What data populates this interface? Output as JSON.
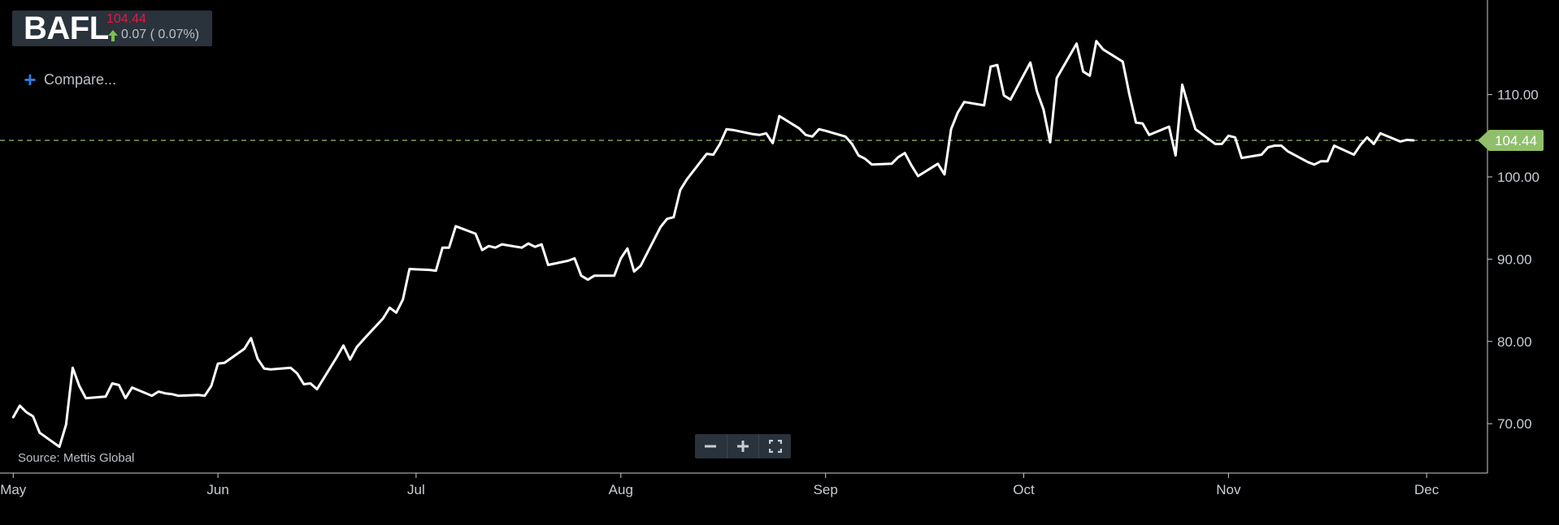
{
  "header": {
    "ticker": "BAFL",
    "price": "104.44",
    "change": "0.07 ( 0.07%)",
    "direction_icon": "arrow-up-icon",
    "price_color": "#e5173f",
    "up_color": "#7cc04b"
  },
  "compare": {
    "label": "Compare...",
    "icon": "plus-icon"
  },
  "source": "Source: Mettis Global",
  "zoom_controls": {
    "zoom_out_icon": "minus-icon",
    "zoom_in_icon": "plus-icon",
    "fullscreen_icon": "fullscreen-icon"
  },
  "chart_data": {
    "type": "line",
    "x_ticks": [
      "May",
      "Jun",
      "Jul",
      "Aug",
      "Sep",
      "Oct",
      "Nov",
      "Dec"
    ],
    "y_ticks": [
      "70.00",
      "80.00",
      "90.00",
      "100.00",
      "110.00"
    ],
    "ylim": [
      64,
      121.5
    ],
    "current_price": 104.44,
    "current_label": "104.44",
    "line_color": "#ffffff",
    "reference_color": "#8fbf6a",
    "series": [
      {
        "points": [
          [
            "2023-05-01",
            70.8
          ],
          [
            "2023-05-02",
            72.2
          ],
          [
            "2023-05-03",
            71.4
          ],
          [
            "2023-05-04",
            70.9
          ],
          [
            "2023-05-05",
            68.9
          ],
          [
            "2023-05-08",
            67.2
          ],
          [
            "2023-05-09",
            69.9
          ],
          [
            "2023-05-10",
            76.8
          ],
          [
            "2023-05-11",
            74.6
          ],
          [
            "2023-05-12",
            73.1
          ],
          [
            "2023-05-15",
            73.3
          ],
          [
            "2023-05-16",
            74.9
          ],
          [
            "2023-05-17",
            74.7
          ],
          [
            "2023-05-18",
            73.1
          ],
          [
            "2023-05-19",
            74.4
          ],
          [
            "2023-05-22",
            73.4
          ],
          [
            "2023-05-23",
            73.9
          ],
          [
            "2023-05-24",
            73.7
          ],
          [
            "2023-05-25",
            73.6
          ],
          [
            "2023-05-26",
            73.4
          ],
          [
            "2023-05-29",
            73.5
          ],
          [
            "2023-05-30",
            73.4
          ],
          [
            "2023-05-31",
            74.6
          ],
          [
            "2023-06-01",
            77.3
          ],
          [
            "2023-06-02",
            77.4
          ],
          [
            "2023-06-05",
            79.1
          ],
          [
            "2023-06-06",
            80.4
          ],
          [
            "2023-06-07",
            77.9
          ],
          [
            "2023-06-08",
            76.7
          ],
          [
            "2023-06-09",
            76.6
          ],
          [
            "2023-06-12",
            76.8
          ],
          [
            "2023-06-13",
            76.1
          ],
          [
            "2023-06-14",
            74.8
          ],
          [
            "2023-06-15",
            74.9
          ],
          [
            "2023-06-16",
            74.2
          ],
          [
            "2023-06-19",
            78.1
          ],
          [
            "2023-06-20",
            79.5
          ],
          [
            "2023-06-21",
            77.8
          ],
          [
            "2023-06-22",
            79.3
          ],
          [
            "2023-06-23",
            80.2
          ],
          [
            "2023-06-26",
            82.8
          ],
          [
            "2023-06-27",
            84.1
          ],
          [
            "2023-06-28",
            83.5
          ],
          [
            "2023-06-29",
            85.1
          ],
          [
            "2023-06-30",
            88.8
          ],
          [
            "2023-07-03",
            88.7
          ],
          [
            "2023-07-04",
            88.6
          ],
          [
            "2023-07-05",
            91.4
          ],
          [
            "2023-07-06",
            91.4
          ],
          [
            "2023-07-07",
            94.0
          ],
          [
            "2023-07-10",
            93.1
          ],
          [
            "2023-07-11",
            91.1
          ],
          [
            "2023-07-12",
            91.6
          ],
          [
            "2023-07-13",
            91.4
          ],
          [
            "2023-07-14",
            91.8
          ],
          [
            "2023-07-17",
            91.4
          ],
          [
            "2023-07-18",
            91.9
          ],
          [
            "2023-07-19",
            91.5
          ],
          [
            "2023-07-20",
            91.8
          ],
          [
            "2023-07-21",
            89.3
          ],
          [
            "2023-07-24",
            89.8
          ],
          [
            "2023-07-25",
            90.1
          ],
          [
            "2023-07-26",
            88.0
          ],
          [
            "2023-07-27",
            87.5
          ],
          [
            "2023-07-28",
            88.0
          ],
          [
            "2023-07-31",
            88.0
          ],
          [
            "2023-08-01",
            90.1
          ],
          [
            "2023-08-02",
            91.3
          ],
          [
            "2023-08-03",
            88.5
          ],
          [
            "2023-08-04",
            89.2
          ],
          [
            "2023-08-07",
            93.9
          ],
          [
            "2023-08-08",
            94.9
          ],
          [
            "2023-08-09",
            95.1
          ],
          [
            "2023-08-10",
            98.4
          ],
          [
            "2023-08-11",
            99.7
          ],
          [
            "2023-08-14",
            102.8
          ],
          [
            "2023-08-15",
            102.7
          ],
          [
            "2023-08-16",
            104.0
          ],
          [
            "2023-08-17",
            105.8
          ],
          [
            "2023-08-18",
            105.7
          ],
          [
            "2023-08-21",
            105.2
          ],
          [
            "2023-08-22",
            105.1
          ],
          [
            "2023-08-23",
            105.3
          ],
          [
            "2023-08-24",
            104.1
          ],
          [
            "2023-08-25",
            107.4
          ],
          [
            "2023-08-28",
            105.9
          ],
          [
            "2023-08-29",
            105.1
          ],
          [
            "2023-08-30",
            104.9
          ],
          [
            "2023-08-31",
            105.8
          ],
          [
            "2023-09-01",
            105.6
          ],
          [
            "2023-09-04",
            104.9
          ],
          [
            "2023-09-05",
            104.0
          ],
          [
            "2023-09-06",
            102.6
          ],
          [
            "2023-09-07",
            102.2
          ],
          [
            "2023-09-08",
            101.5
          ],
          [
            "2023-09-11",
            101.6
          ],
          [
            "2023-09-12",
            102.4
          ],
          [
            "2023-09-13",
            102.9
          ],
          [
            "2023-09-14",
            101.4
          ],
          [
            "2023-09-15",
            100.1
          ],
          [
            "2023-09-18",
            101.6
          ],
          [
            "2023-09-19",
            100.3
          ],
          [
            "2023-09-20",
            105.8
          ],
          [
            "2023-09-21",
            107.8
          ],
          [
            "2023-09-22",
            109.1
          ],
          [
            "2023-09-25",
            108.7
          ],
          [
            "2023-09-26",
            113.4
          ],
          [
            "2023-09-27",
            113.6
          ],
          [
            "2023-09-28",
            109.9
          ],
          [
            "2023-09-29",
            109.4
          ],
          [
            "2023-10-02",
            113.9
          ],
          [
            "2023-10-03",
            110.4
          ],
          [
            "2023-10-04",
            108.2
          ],
          [
            "2023-10-05",
            104.2
          ],
          [
            "2023-10-06",
            112.0
          ],
          [
            "2023-10-09",
            116.2
          ],
          [
            "2023-10-10",
            112.8
          ],
          [
            "2023-10-11",
            112.3
          ],
          [
            "2023-10-12",
            116.5
          ],
          [
            "2023-10-13",
            115.5
          ],
          [
            "2023-10-16",
            114.0
          ],
          [
            "2023-10-17",
            110.0
          ],
          [
            "2023-10-18",
            106.6
          ],
          [
            "2023-10-19",
            106.5
          ],
          [
            "2023-10-20",
            105.1
          ],
          [
            "2023-10-23",
            106.1
          ],
          [
            "2023-10-24",
            102.6
          ],
          [
            "2023-10-25",
            111.2
          ],
          [
            "2023-10-26",
            108.4
          ],
          [
            "2023-10-27",
            105.8
          ],
          [
            "2023-10-30",
            104.0
          ],
          [
            "2023-10-31",
            104.0
          ],
          [
            "2023-11-01",
            105.0
          ],
          [
            "2023-11-02",
            104.8
          ],
          [
            "2023-11-03",
            102.3
          ],
          [
            "2023-11-06",
            102.7
          ],
          [
            "2023-11-07",
            103.6
          ],
          [
            "2023-11-08",
            103.8
          ],
          [
            "2023-11-09",
            103.8
          ],
          [
            "2023-11-10",
            103.1
          ],
          [
            "2023-11-13",
            101.8
          ],
          [
            "2023-11-14",
            101.5
          ],
          [
            "2023-11-15",
            101.9
          ],
          [
            "2023-11-16",
            101.9
          ],
          [
            "2023-11-17",
            103.8
          ],
          [
            "2023-11-20",
            102.7
          ],
          [
            "2023-11-21",
            103.9
          ],
          [
            "2023-11-22",
            104.8
          ],
          [
            "2023-11-23",
            104.0
          ],
          [
            "2023-11-24",
            105.3
          ],
          [
            "2023-11-27",
            104.3
          ],
          [
            "2023-11-28",
            104.5
          ],
          [
            "2023-11-29",
            104.44
          ]
        ]
      }
    ]
  }
}
